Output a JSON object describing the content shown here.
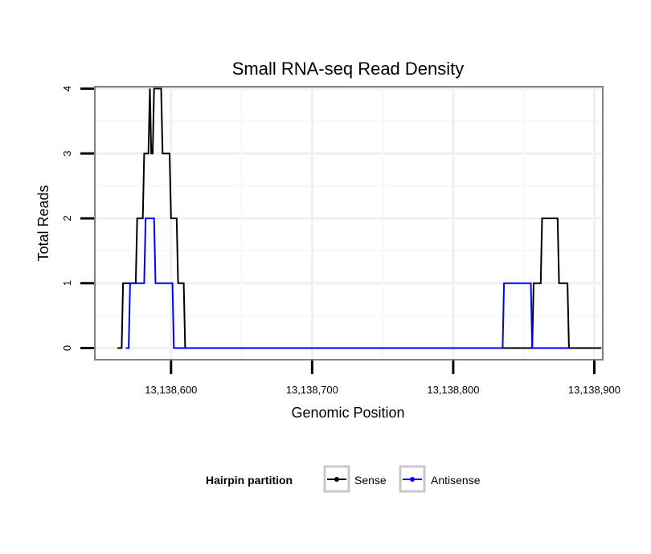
{
  "chart_data": {
    "type": "line",
    "title": "Small RNA-seq Read Density",
    "xlabel": "Genomic Position",
    "ylabel": "Total Reads",
    "xlim": [
      13138546,
      13138906
    ],
    "ylim": [
      -0.18,
      4.03
    ],
    "x_ticks": [
      13138600,
      13138700,
      13138800,
      13138900
    ],
    "x_tick_labels": [
      "13,138,600",
      "13,138,700",
      "13,138,800",
      "13,138,900"
    ],
    "y_ticks": [
      0,
      1,
      2,
      3,
      4
    ],
    "y_tick_labels": [
      "0",
      "1",
      "2",
      "3",
      "4"
    ],
    "grid": true,
    "legend": {
      "title": "Hairpin partition",
      "position": "bottom",
      "entries": [
        "Sense",
        "Antisense"
      ]
    },
    "series": [
      {
        "name": "Sense",
        "color": "#000000",
        "x": [
          13138562,
          13138565,
          13138566,
          13138575,
          13138576,
          13138580,
          13138581,
          13138584,
          13138585,
          13138586,
          13138587,
          13138588,
          13138589,
          13138593,
          13138594,
          13138599,
          13138600,
          13138604,
          13138605,
          13138609,
          13138610,
          13138856,
          13138857,
          13138862,
          13138863,
          13138874,
          13138875,
          13138881,
          13138882,
          13138905
        ],
        "y": [
          0,
          0,
          1,
          1,
          2,
          2,
          3,
          3,
          4,
          3,
          3,
          4,
          4,
          4,
          3,
          3,
          2,
          2,
          1,
          1,
          0,
          0,
          1,
          1,
          2,
          2,
          1,
          1,
          0,
          0
        ]
      },
      {
        "name": "Antisense",
        "color": "#0000ff",
        "x": [
          13138568,
          13138570,
          13138571,
          13138581,
          13138582,
          13138588,
          13138589,
          13138601,
          13138602,
          13138835,
          13138836,
          13138855,
          13138856,
          13138882
        ],
        "y": [
          0,
          0,
          1,
          1,
          2,
          2,
          1,
          1,
          0,
          0,
          1,
          1,
          0,
          0
        ]
      }
    ]
  }
}
